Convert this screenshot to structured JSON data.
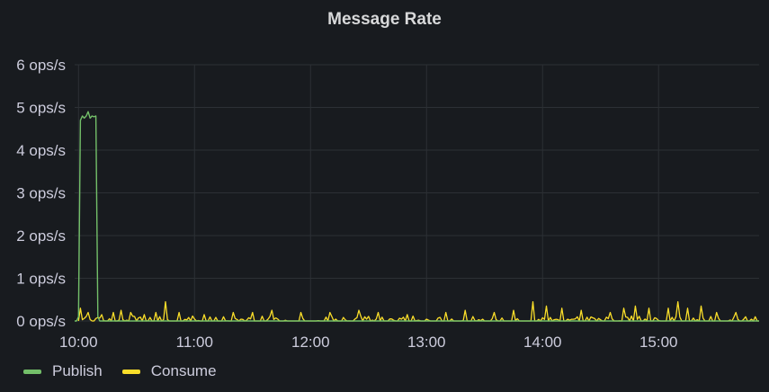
{
  "panel": {
    "title": "Message Rate"
  },
  "colors": {
    "background": "#181b1f",
    "grid": "#2c3035",
    "text": "#ccccdc",
    "publish": "#73bf69",
    "consume": "#fade2a"
  },
  "chart_data": {
    "type": "line",
    "title": "Message Rate",
    "xlabel": "",
    "ylabel": "",
    "y_unit": "ops/s",
    "ylim": [
      0,
      6
    ],
    "xlim": [
      "09:58",
      "15:52"
    ],
    "y_ticks": [
      "0 ops/s",
      "1 ops/s",
      "2 ops/s",
      "3 ops/s",
      "4 ops/s",
      "5 ops/s",
      "6 ops/s"
    ],
    "x_ticks": [
      "10:00",
      "11:00",
      "12:00",
      "13:00",
      "14:00",
      "15:00"
    ],
    "grid": true,
    "legend_position": "bottom-left",
    "series": [
      {
        "name": "Publish",
        "color": "#73bf69",
        "points": [
          [
            "09:58",
            0
          ],
          [
            "09:59",
            0
          ],
          [
            "10:00",
            0.1
          ],
          [
            "10:01",
            4.7
          ],
          [
            "10:02",
            4.8
          ],
          [
            "10:03",
            4.75
          ],
          [
            "10:04",
            4.8
          ],
          [
            "10:05",
            4.9
          ],
          [
            "10:06",
            4.75
          ],
          [
            "10:07",
            4.8
          ],
          [
            "10:08",
            4.78
          ],
          [
            "10:09",
            4.8
          ],
          [
            "10:10",
            0.1
          ],
          [
            "10:11",
            0
          ],
          [
            "10:12",
            0
          ],
          [
            "15:52",
            0
          ]
        ]
      },
      {
        "name": "Consume",
        "color": "#fade2a",
        "spikes": [
          [
            "10:01",
            0.3
          ],
          [
            "10:05",
            0.2
          ],
          [
            "10:12",
            0.15
          ],
          [
            "10:18",
            0.2
          ],
          [
            "10:22",
            0.25
          ],
          [
            "10:27",
            0.2
          ],
          [
            "10:34",
            0.15
          ],
          [
            "10:40",
            0.2
          ],
          [
            "10:45",
            0.45
          ],
          [
            "10:52",
            0.2
          ],
          [
            "11:05",
            0.15
          ],
          [
            "11:20",
            0.2
          ],
          [
            "11:30",
            0.2
          ],
          [
            "11:40",
            0.25
          ],
          [
            "11:55",
            0.2
          ],
          [
            "12:10",
            0.2
          ],
          [
            "12:25",
            0.25
          ],
          [
            "12:35",
            0.2
          ],
          [
            "12:50",
            0.15
          ],
          [
            "13:10",
            0.2
          ],
          [
            "13:20",
            0.25
          ],
          [
            "13:35",
            0.2
          ],
          [
            "13:45",
            0.25
          ],
          [
            "13:55",
            0.45
          ],
          [
            "14:02",
            0.35
          ],
          [
            "14:10",
            0.3
          ],
          [
            "14:20",
            0.25
          ],
          [
            "14:35",
            0.2
          ],
          [
            "14:42",
            0.3
          ],
          [
            "14:48",
            0.35
          ],
          [
            "14:55",
            0.3
          ],
          [
            "15:05",
            0.3
          ],
          [
            "15:10",
            0.45
          ],
          [
            "15:15",
            0.3
          ],
          [
            "15:22",
            0.35
          ],
          [
            "15:30",
            0.2
          ],
          [
            "15:40",
            0.2
          ],
          [
            "15:50",
            0.1
          ]
        ]
      }
    ]
  }
}
